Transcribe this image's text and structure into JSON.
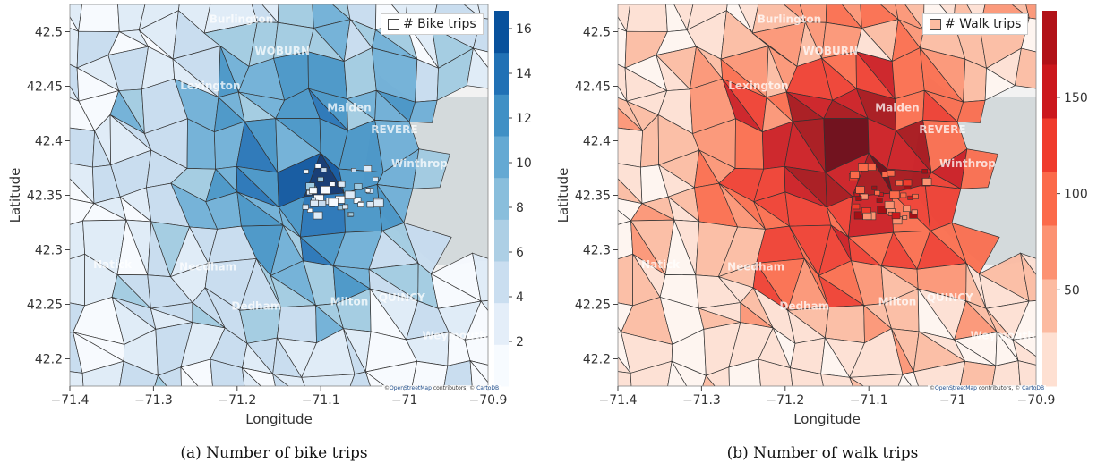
{
  "attribution": {
    "prefix": "©",
    "osm_link": "OpenStreetMap",
    "middle": "contributors, ©",
    "carto_link": "CartoDB"
  },
  "panels": [
    {
      "id": "a",
      "caption": "(a) Number of bike trips",
      "legend_label": "# Bike trips",
      "colorbar_ticks": [
        "2",
        "4",
        "6",
        "8",
        "10",
        "12",
        "14",
        "16"
      ],
      "colorbar_tick_values": [
        2,
        4,
        6,
        8,
        10,
        12,
        14,
        16
      ],
      "colorbar_range": [
        0,
        16.8
      ],
      "palette": [
        "#f7fbff",
        "#deebf7",
        "#c6dbef",
        "#9ecae1",
        "#6baed6",
        "#4292c6",
        "#2171b5",
        "#08519c",
        "#08306b"
      ],
      "colorbar_colors": [
        "#f7fbff",
        "#e4eef9",
        "#cadef0",
        "#adcfe5",
        "#89bedc",
        "#64a9d3",
        "#4090c5",
        "#2171b5",
        "#08519c"
      ]
    },
    {
      "id": "b",
      "caption": "(b) Number of walk trips",
      "legend_label": "# Walk trips",
      "colorbar_ticks": [
        "50",
        "100",
        "150"
      ],
      "colorbar_tick_values": [
        50,
        100,
        150
      ],
      "colorbar_range": [
        0,
        195
      ],
      "palette": [
        "#fff5f0",
        "#fee0d2",
        "#fcbba1",
        "#fc9272",
        "#fb6a4a",
        "#ef3b2c",
        "#cb181d",
        "#a50f15",
        "#67000d"
      ],
      "colorbar_colors": [
        "#fee0d2",
        "#fcbba1",
        "#fc9272",
        "#fb6a4a",
        "#ef3b2c",
        "#cb181d",
        "#b11218"
      ]
    }
  ],
  "axes": {
    "x_label": "Longitude",
    "y_label": "Latitude",
    "x_ticks": [
      "−71.4",
      "−71.3",
      "−71.2",
      "−71.1",
      "−71",
      "−70.9"
    ],
    "x_tick_values": [
      -71.4,
      -71.3,
      -71.2,
      -71.1,
      -71.0,
      -70.9
    ],
    "x_range": [
      -71.4,
      -70.9
    ],
    "y_ticks": [
      "42.2",
      "42.25",
      "42.3",
      "42.35",
      "42.4",
      "42.45",
      "42.5"
    ],
    "y_tick_values": [
      42.2,
      42.25,
      42.3,
      42.35,
      42.4,
      42.45,
      42.5
    ],
    "y_range": [
      42.175,
      42.525
    ]
  },
  "basemap_labels": [
    {
      "text": "Burlington",
      "lon": -71.195,
      "lat": 42.508
    },
    {
      "text": "WOBURN",
      "lon": -71.146,
      "lat": 42.479
    },
    {
      "text": "Lexington",
      "lon": -71.232,
      "lat": 42.447
    },
    {
      "text": "Malden",
      "lon": -71.066,
      "lat": 42.427
    },
    {
      "text": "REVERE",
      "lon": -71.012,
      "lat": 42.407
    },
    {
      "text": "Winthrop",
      "lon": -70.982,
      "lat": 42.376
    },
    {
      "text": "Natick",
      "lon": -71.349,
      "lat": 42.283
    },
    {
      "text": "Needham",
      "lon": -71.235,
      "lat": 42.281
    },
    {
      "text": "Dedham",
      "lon": -71.177,
      "lat": 42.245
    },
    {
      "text": "Milton",
      "lon": -71.066,
      "lat": 42.249
    },
    {
      "text": "QUINCY",
      "lon": -71.003,
      "lat": 42.253
    },
    {
      "text": "Weymouth",
      "lon": -70.94,
      "lat": 42.218
    }
  ]
}
